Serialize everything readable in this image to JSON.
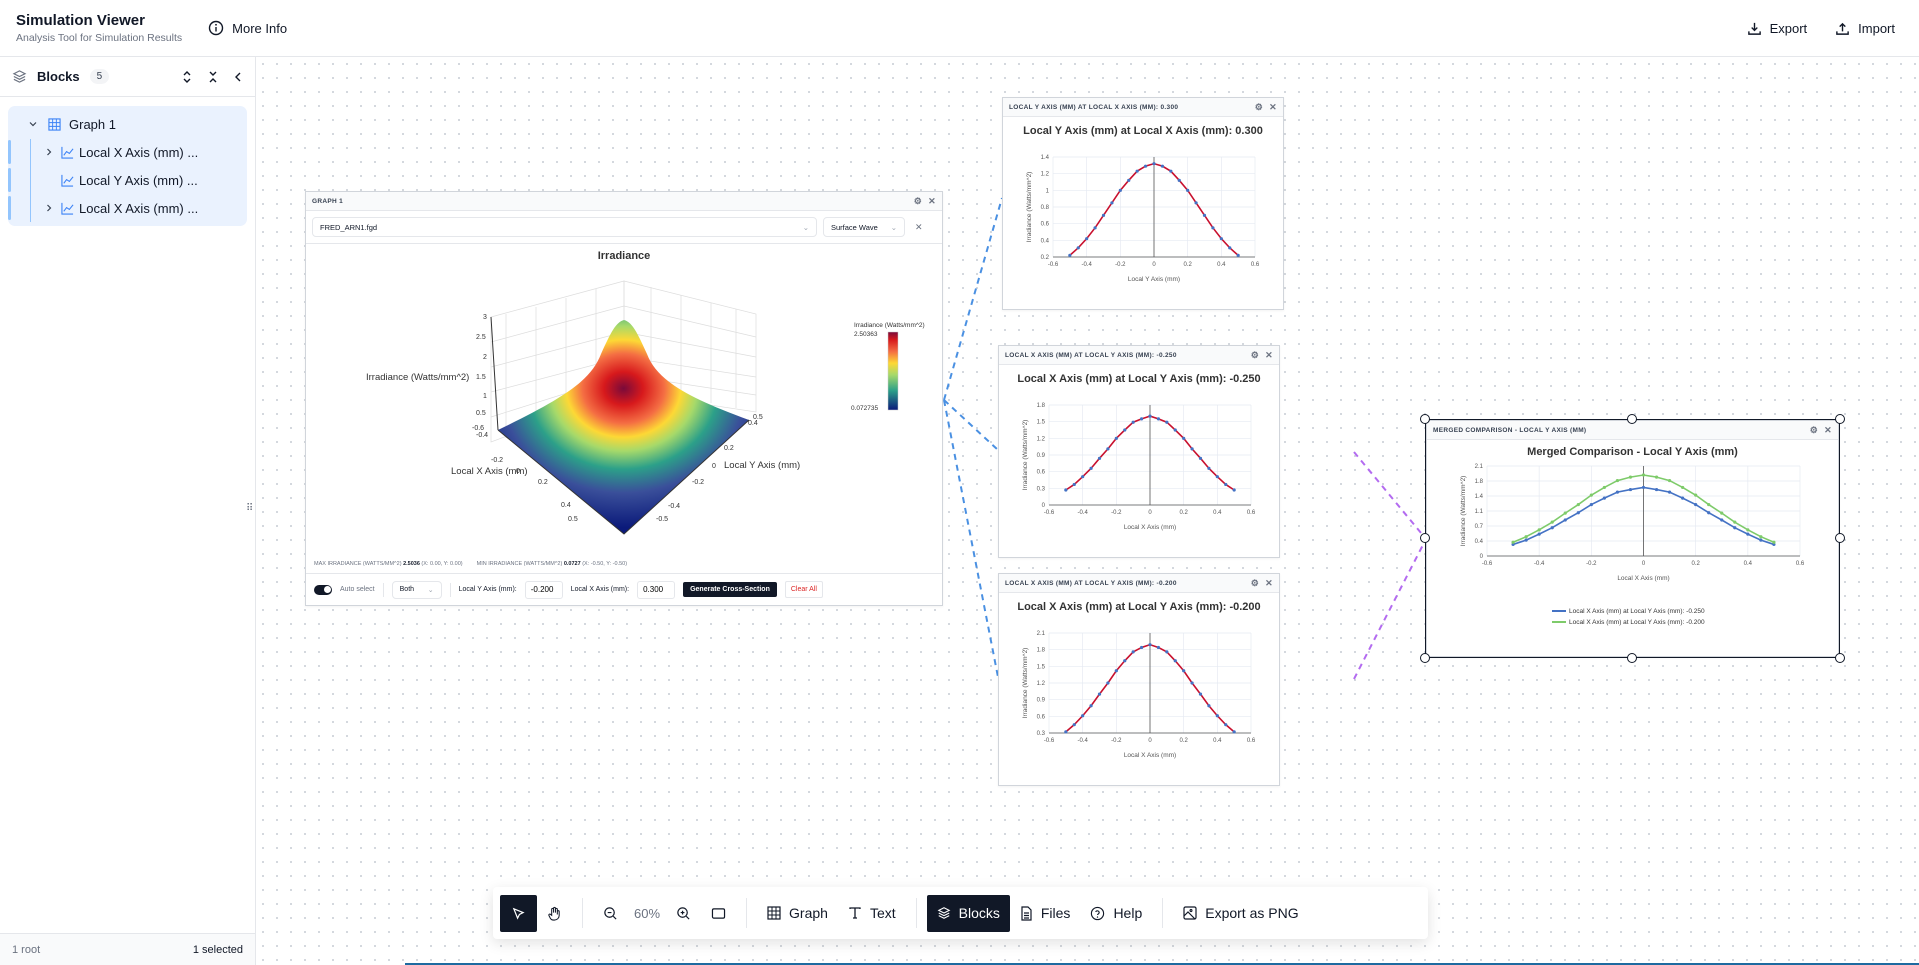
{
  "header": {
    "title": "Simulation Viewer",
    "subtitle": "Analysis Tool for Simulation Results",
    "more_info": "More Info",
    "export": "Export",
    "import": "Import"
  },
  "sidebar": {
    "title": "Blocks",
    "count": "5",
    "items": [
      {
        "label": "Graph 1",
        "icon": "grid-icon",
        "expanded": true
      },
      {
        "label": "Local X Axis (mm) ...",
        "icon": "line-chart-icon",
        "expandable": true
      },
      {
        "label": "Local Y Axis (mm) ...",
        "icon": "line-chart-icon",
        "expandable": false
      },
      {
        "label": "Local X Axis (mm) ...",
        "icon": "line-chart-icon",
        "expandable": true
      }
    ],
    "footer_left": "1 root",
    "footer_right": "1 selected"
  },
  "graph1": {
    "header": "GRAPH 1",
    "file": "FRED_ARN1.fgd",
    "mode": "Surface Wave",
    "chart_title": "Irradiance",
    "z_label": "Irradiance (Watts/mm^2)",
    "x_label": "Local X Axis (mm)",
    "y_label": "Local Y Axis (mm)",
    "colorbar_title": "Irradiance (Watts/mm^2)",
    "colorbar_max": "2.50363",
    "colorbar_min": "0.072735",
    "max_label": "MAX IRRADIANCE (WATTS/MM^2)",
    "max_value": "2.5036",
    "max_coords": "(X: 0.00, Y: 0.00)",
    "min_label": "MIN IRRADIANCE (WATTS/MM^2)",
    "min_value": "0.0727",
    "min_coords": "(X: -0.50, Y: -0.50)",
    "auto_select": "Auto select",
    "axis_mode": "Both",
    "y_input_label": "Local Y Axis (mm):",
    "y_input_value": "-0.200",
    "x_input_label": "Local X Axis (mm):",
    "x_input_value": "0.300",
    "generate": "Generate Cross-Section",
    "clear": "Clear All"
  },
  "blocks": {
    "b1": {
      "header": "LOCAL Y AXIS (MM) AT LOCAL X AXIS (MM): 0.300",
      "title": "Local Y Axis (mm) at Local X Axis (mm): 0.300",
      "xlabel": "Local Y Axis (mm)",
      "ylabel": "Irradiance (Watts/mm^2)"
    },
    "b2": {
      "header": "LOCAL X AXIS (MM) AT LOCAL Y AXIS (MM): -0.250",
      "title": "Local X Axis (mm) at Local Y Axis (mm): -0.250",
      "xlabel": "Local X Axis (mm)",
      "ylabel": "Irradiance (Watts/mm^2)"
    },
    "b3": {
      "header": "LOCAL X AXIS (MM) AT LOCAL Y AXIS (MM): -0.200",
      "title": "Local X Axis (mm) at Local Y Axis (mm): -0.200",
      "xlabel": "Local X Axis (mm)",
      "ylabel": "Irradiance (Watts/mm^2)"
    },
    "merged": {
      "header": "MERGED COMPARISON - LOCAL Y AXIS (MM)",
      "title": "Merged Comparison - Local Y Axis (mm)",
      "xlabel": "Local X Axis (mm)",
      "ylabel": "Irradiance (Watts/mm^2)",
      "legend": [
        "Local X Axis (mm) at Local Y Axis (mm): -0.250",
        "Local X Axis (mm) at Local Y Axis (mm): -0.200"
      ]
    }
  },
  "toolbar": {
    "zoom": "60%",
    "graph": "Graph",
    "text": "Text",
    "blocks": "Blocks",
    "files": "Files",
    "help": "Help",
    "export_png": "Export as PNG"
  },
  "colors": {
    "accent_dark": "#111827",
    "line_red": "#c8102e",
    "marker_blue": "#4472c4",
    "merged_green": "#7ecb6a",
    "connector_blue": "#4a90e2",
    "connector_purple": "#b36bf0"
  },
  "chart_data": [
    {
      "type": "line",
      "title": "Local Y Axis (mm) at Local X Axis (mm): 0.300",
      "xlabel": "Local Y Axis (mm)",
      "ylabel": "Irradiance (Watts/mm^2)",
      "xlim": [
        -0.6,
        0.6
      ],
      "ylim": [
        0.2,
        1.4
      ],
      "x": [
        -0.5,
        -0.45,
        -0.4,
        -0.35,
        -0.3,
        -0.25,
        -0.2,
        -0.15,
        -0.1,
        -0.05,
        0,
        0.05,
        0.1,
        0.15,
        0.2,
        0.25,
        0.3,
        0.35,
        0.4,
        0.45,
        0.5
      ],
      "values": [
        0.22,
        0.31,
        0.42,
        0.55,
        0.7,
        0.85,
        1.0,
        1.12,
        1.23,
        1.29,
        1.32,
        1.29,
        1.23,
        1.12,
        1.0,
        0.85,
        0.7,
        0.55,
        0.42,
        0.31,
        0.22
      ]
    },
    {
      "type": "line",
      "title": "Local X Axis (mm) at Local Y Axis (mm): -0.250",
      "xlabel": "Local X Axis (mm)",
      "ylabel": "Irradiance (Watts/mm^2)",
      "xlim": [
        -0.6,
        0.6
      ],
      "ylim": [
        0,
        1.8
      ],
      "x": [
        -0.5,
        -0.45,
        -0.4,
        -0.35,
        -0.3,
        -0.25,
        -0.2,
        -0.15,
        -0.1,
        -0.05,
        0,
        0.05,
        0.1,
        0.15,
        0.2,
        0.25,
        0.3,
        0.35,
        0.4,
        0.45,
        0.5
      ],
      "values": [
        0.27,
        0.37,
        0.51,
        0.66,
        0.84,
        1.01,
        1.2,
        1.35,
        1.49,
        1.55,
        1.6,
        1.55,
        1.49,
        1.35,
        1.2,
        1.01,
        0.84,
        0.66,
        0.51,
        0.37,
        0.27
      ]
    },
    {
      "type": "line",
      "title": "Local X Axis (mm) at Local Y Axis (mm): -0.200",
      "xlabel": "Local X Axis (mm)",
      "ylabel": "Irradiance (Watts/mm^2)",
      "xlim": [
        -0.6,
        0.6
      ],
      "ylim": [
        0.3,
        2.1
      ],
      "x": [
        -0.5,
        -0.45,
        -0.4,
        -0.35,
        -0.3,
        -0.25,
        -0.2,
        -0.15,
        -0.1,
        -0.05,
        0,
        0.05,
        0.1,
        0.15,
        0.2,
        0.25,
        0.3,
        0.35,
        0.4,
        0.45,
        0.5
      ],
      "values": [
        0.32,
        0.45,
        0.61,
        0.79,
        1.0,
        1.2,
        1.42,
        1.6,
        1.76,
        1.84,
        1.89,
        1.84,
        1.76,
        1.6,
        1.42,
        1.2,
        1.0,
        0.79,
        0.61,
        0.45,
        0.32
      ]
    },
    {
      "type": "line",
      "title": "Merged Comparison - Local Y Axis (mm)",
      "xlabel": "Local X Axis (mm)",
      "ylabel": "Irradiance (Watts/mm^2)",
      "xlim": [
        -0.6,
        0.6
      ],
      "ylim": [
        0,
        2.1
      ],
      "x": [
        -0.5,
        -0.45,
        -0.4,
        -0.35,
        -0.3,
        -0.25,
        -0.2,
        -0.15,
        -0.1,
        -0.05,
        0,
        0.05,
        0.1,
        0.15,
        0.2,
        0.25,
        0.3,
        0.35,
        0.4,
        0.45,
        0.5
      ],
      "series": [
        {
          "name": "Local X Axis (mm) at Local Y Axis (mm): -0.250",
          "values": [
            0.27,
            0.37,
            0.51,
            0.66,
            0.84,
            1.01,
            1.2,
            1.35,
            1.49,
            1.55,
            1.6,
            1.55,
            1.49,
            1.35,
            1.2,
            1.01,
            0.84,
            0.66,
            0.51,
            0.37,
            0.27
          ]
        },
        {
          "name": "Local X Axis (mm) at Local Y Axis (mm): -0.200",
          "values": [
            0.32,
            0.45,
            0.61,
            0.79,
            1.0,
            1.2,
            1.42,
            1.6,
            1.76,
            1.84,
            1.89,
            1.84,
            1.76,
            1.6,
            1.42,
            1.2,
            1.0,
            0.79,
            0.61,
            0.45,
            0.32
          ]
        }
      ],
      "legend_position": "bottom"
    },
    {
      "type": "heatmap",
      "title": "Irradiance",
      "xlabel": "Local X Axis (mm)",
      "ylabel": "Local Y Axis (mm)",
      "zlabel": "Irradiance (Watts/mm^2)",
      "xlim": [
        -0.5,
        0.5
      ],
      "ylim": [
        -0.5,
        0.5
      ],
      "zlim": [
        0,
        3
      ],
      "color_range": [
        0.072735,
        2.50363
      ],
      "max": {
        "value": 2.5036,
        "x": 0.0,
        "y": 0.0
      },
      "min": {
        "value": 0.0727,
        "x": -0.5,
        "y": -0.5
      }
    }
  ]
}
